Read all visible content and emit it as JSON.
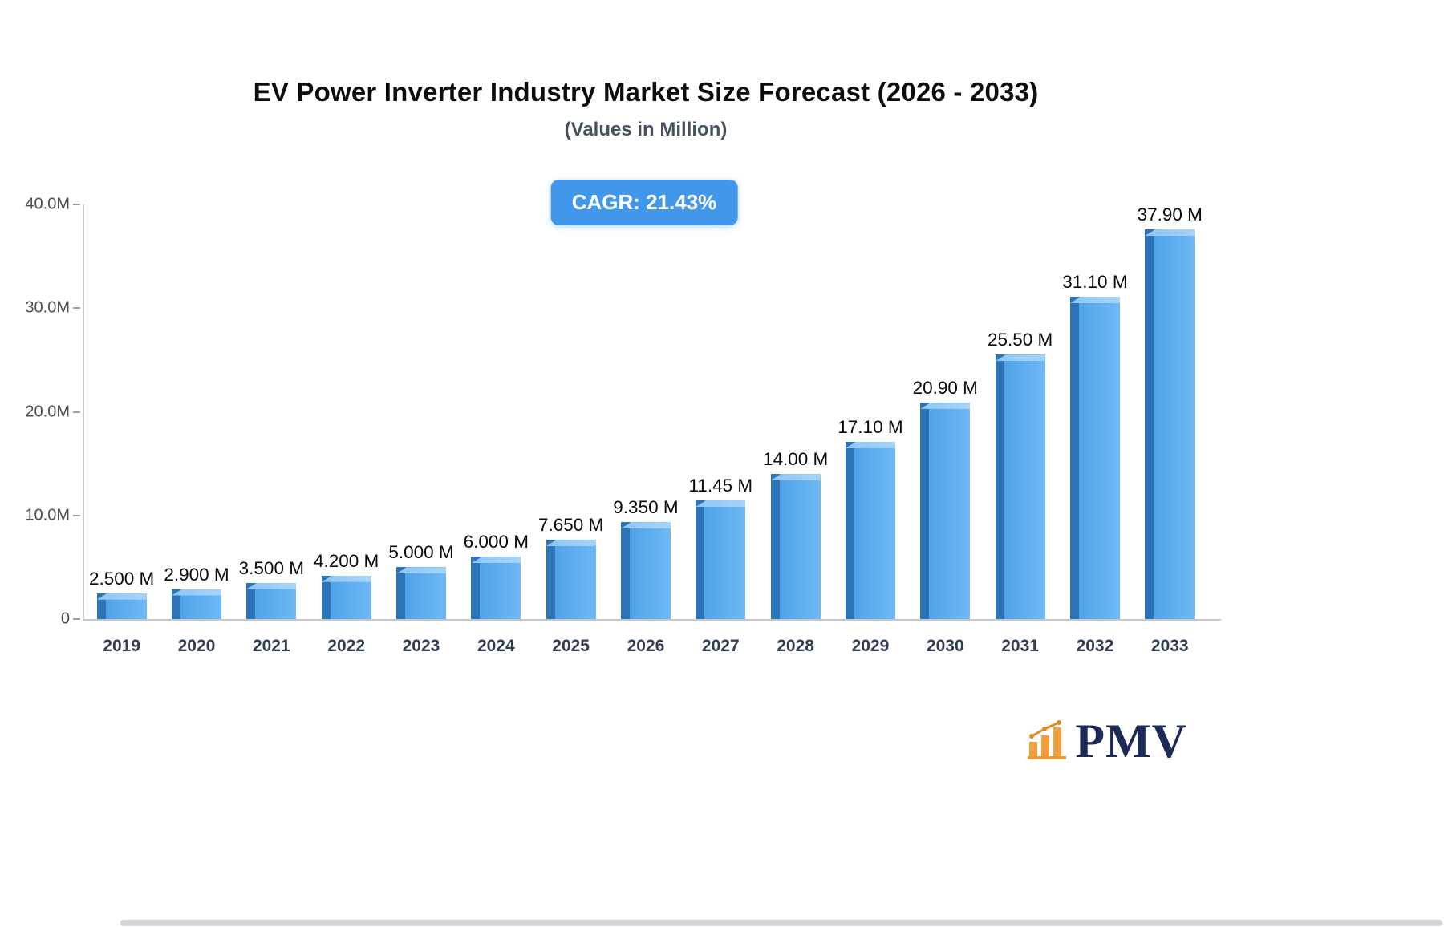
{
  "page": {
    "logo_text": "PMV"
  },
  "chart_data": {
    "type": "bar",
    "title": "EV Power Inverter Industry Market Size Forecast (2026 - 2033)",
    "subtitle": "(Values in Million)",
    "annotation": "CAGR: 21.43%",
    "categories": [
      "2019",
      "2020",
      "2021",
      "2022",
      "2023",
      "2024",
      "2025",
      "2026",
      "2027",
      "2028",
      "2029",
      "2030",
      "2031",
      "2032",
      "2033"
    ],
    "values": [
      2.5,
      2.9,
      3.5,
      4.2,
      5.0,
      6.0,
      7.65,
      9.35,
      11.45,
      14.0,
      17.1,
      20.9,
      25.5,
      31.1,
      37.9
    ],
    "value_labels": [
      "2.500 M",
      "2.900 M",
      "3.500 M",
      "4.200 M",
      "5.000 M",
      "6.000 M",
      "7.650 M",
      "9.350 M",
      "11.45 M",
      "14.00 M",
      "17.10 M",
      "20.90 M",
      "25.50 M",
      "31.10 M",
      "37.90 M"
    ],
    "y_ticks": [
      {
        "label": "40.0M",
        "value": 40
      },
      {
        "label": "30.0M",
        "value": 30
      },
      {
        "label": "20.0M",
        "value": 20
      },
      {
        "label": "10.0M",
        "value": 10
      },
      {
        "label": "0",
        "value": 0
      }
    ],
    "ylim": [
      0,
      40
    ],
    "xlabel": "",
    "ylabel": "",
    "grid": false,
    "legend": false,
    "colors": {
      "bar_face": "#4FA3E9",
      "bar_side": "#2C73B7",
      "bar_top": "#8CC6F7",
      "badge_bg": "#4197EB",
      "logo_orange": "#F2A03D",
      "logo_navy": "#1C2A57"
    }
  }
}
